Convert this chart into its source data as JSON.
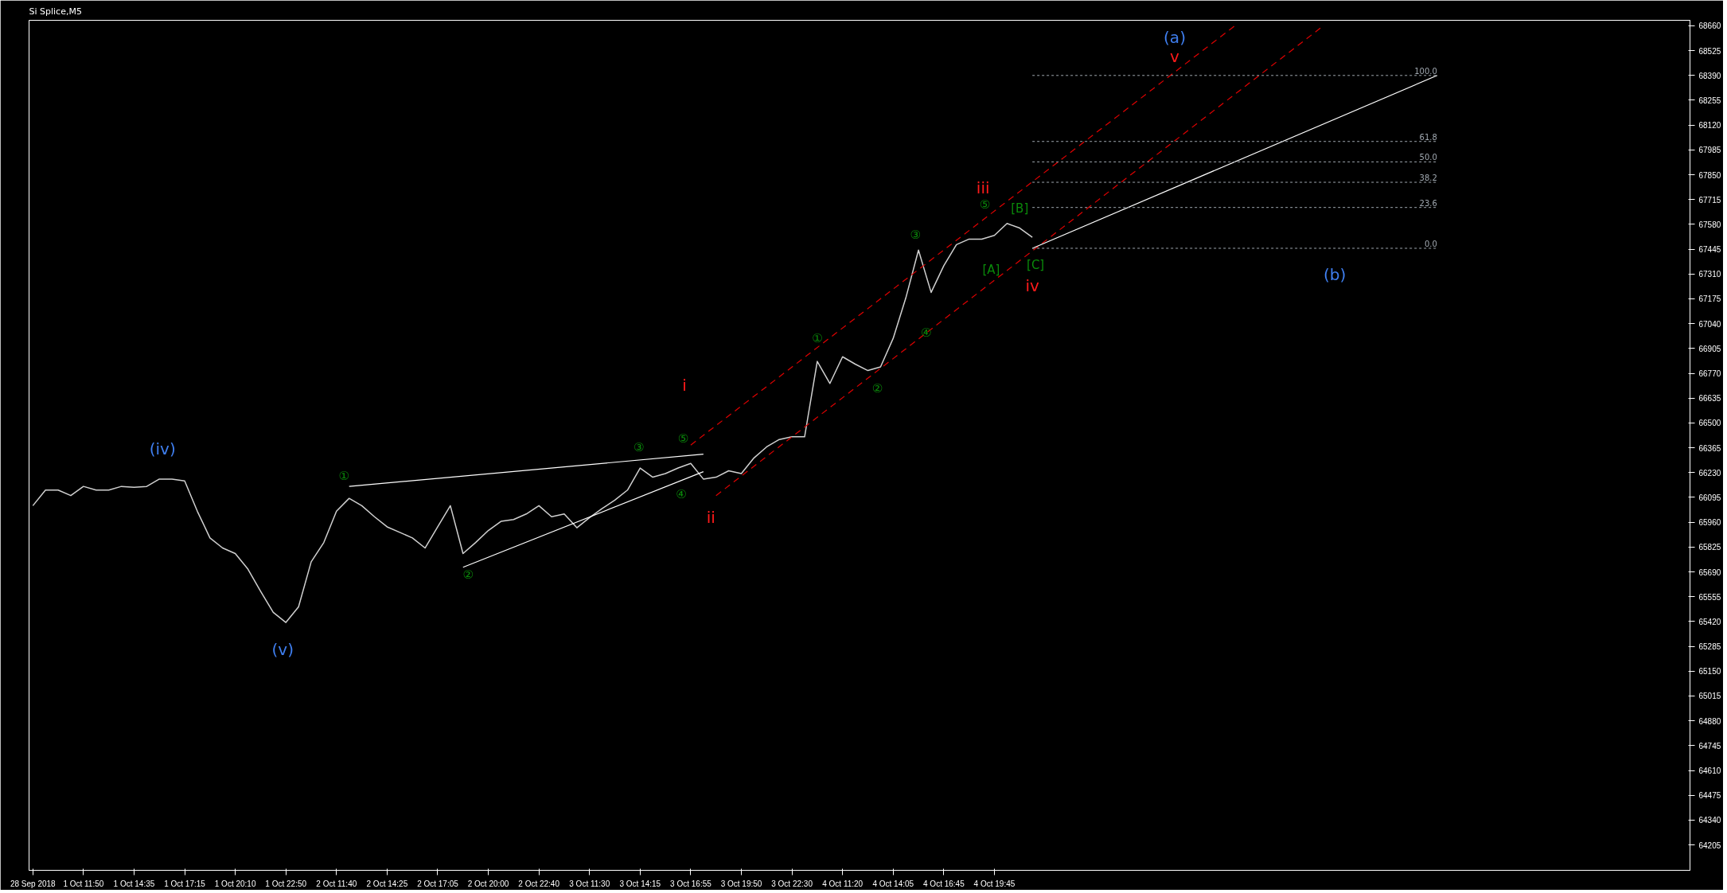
{
  "chart_data": {
    "type": "line",
    "title": "Si Splice,M5",
    "categories": [
      "28 Sep 2018",
      null,
      null,
      null,
      "1 Oct 11:50",
      null,
      null,
      null,
      "1 Oct 14:35",
      null,
      null,
      null,
      "1 Oct 17:15",
      null,
      null,
      null,
      "1 Oct 20:10",
      null,
      null,
      null,
      "1 Oct 22:50",
      null,
      null,
      null,
      "2 Oct 11:40",
      null,
      null,
      null,
      "2 Oct 14:25",
      null,
      null,
      null,
      "2 Oct 17:05",
      null,
      null,
      null,
      "2 Oct 20:00",
      null,
      null,
      null,
      "2 Oct 22:40",
      null,
      null,
      null,
      "3 Oct 11:30",
      null,
      null,
      null,
      "3 Oct 14:15",
      null,
      null,
      null,
      "3 Oct 16:55",
      null,
      null,
      null,
      "3 Oct 19:50",
      null,
      null,
      null,
      "3 Oct 22:30",
      null,
      null,
      null,
      "4 Oct 11:20",
      null,
      null,
      null,
      "4 Oct 14:05",
      null,
      null,
      null,
      "4 Oct 16:45",
      null,
      null,
      null,
      "4 Oct 19:45",
      null,
      null,
      null,
      null,
      null,
      null,
      null,
      null,
      null,
      null,
      null,
      null,
      null,
      null,
      null,
      null,
      null,
      null,
      null,
      null,
      null,
      null,
      null,
      null,
      null,
      null,
      null,
      null,
      null,
      null,
      null,
      null,
      null,
      null,
      null
    ],
    "ylim": [
      64067,
      68690
    ],
    "yticks": [
      64205,
      64340,
      64475,
      64610,
      64745,
      64880,
      65015,
      65150,
      65285,
      65420,
      65555,
      65690,
      65825,
      65960,
      66095,
      66230,
      66365,
      66500,
      66635,
      66770,
      66905,
      67040,
      67175,
      67310,
      67445,
      67580,
      67715,
      67850,
      67985,
      68120,
      68255,
      68390,
      68525,
      68660
    ],
    "grid": false,
    "line_style": "solid",
    "series": [
      {
        "color": "#d0d0d0",
        "values": [
          66050,
          66135,
          66135,
          66105,
          66155,
          66135,
          66135,
          66155,
          66150,
          66155,
          66195,
          66195,
          66185,
          66020,
          65875,
          65820,
          65790,
          65705,
          65585,
          65470,
          65415,
          65500,
          65745,
          65850,
          66020,
          66090,
          66050,
          65990,
          65935,
          65905,
          65875,
          65820,
          65935,
          66050,
          65790,
          65850,
          65915,
          65965,
          65975,
          66005,
          66050,
          65990,
          66005,
          65930,
          65985,
          66035,
          66080,
          66135,
          66255,
          66205,
          66225,
          66255,
          66280,
          66195,
          66205,
          66240,
          66225,
          66310,
          66370,
          66410,
          66425,
          66425,
          66835,
          66715,
          66860,
          66820,
          66785,
          66805,
          66960,
          67180,
          67440,
          67210,
          67355,
          67470,
          67500,
          67500,
          67520,
          67585,
          67560,
          67510,
          null,
          null,
          null,
          null,
          null,
          null,
          null,
          null,
          null,
          null,
          null,
          null,
          null,
          null,
          null,
          null,
          null,
          null,
          null,
          null,
          null,
          null,
          null,
          null,
          null,
          null,
          null,
          null,
          null,
          null,
          null,
          null
        ]
      },
      {
        "color": "#ffffff",
        "values": [
          null,
          null,
          null,
          null,
          null,
          null,
          null,
          null,
          null,
          null,
          null,
          null,
          null,
          null,
          null,
          null,
          null,
          null,
          null,
          null,
          null,
          null,
          null,
          null,
          null,
          66155,
          null,
          null,
          null,
          null,
          null,
          null,
          null,
          null,
          null,
          null,
          null,
          null,
          null,
          null,
          null,
          null,
          null,
          null,
          null,
          null,
          null,
          null,
          null,
          null,
          null,
          null,
          null,
          66330,
          null,
          null,
          null,
          null,
          null,
          null,
          null,
          null,
          null,
          null,
          null,
          null,
          null,
          null,
          null,
          null,
          null,
          null,
          null,
          null,
          null,
          null,
          null,
          null,
          null,
          null,
          null,
          null,
          null,
          null,
          null,
          null,
          null,
          null,
          null,
          null,
          null,
          null,
          null,
          null,
          null,
          null,
          null,
          null,
          null,
          null,
          null,
          null,
          null,
          null,
          null,
          null,
          null,
          null,
          null,
          null,
          null,
          null
        ]
      },
      {
        "color": "#ffffff",
        "values": [
          null,
          null,
          null,
          null,
          null,
          null,
          null,
          null,
          null,
          null,
          null,
          null,
          null,
          null,
          null,
          null,
          null,
          null,
          null,
          null,
          null,
          null,
          null,
          null,
          null,
          null,
          null,
          null,
          null,
          null,
          null,
          null,
          null,
          null,
          65715,
          null,
          null,
          null,
          null,
          null,
          null,
          null,
          null,
          null,
          null,
          null,
          null,
          null,
          null,
          null,
          null,
          null,
          null,
          66235,
          null,
          null,
          null,
          null,
          null,
          null,
          null,
          null,
          null,
          null,
          null,
          null,
          null,
          null,
          null,
          null,
          null,
          null,
          null,
          null,
          null,
          null,
          null,
          null,
          null,
          null,
          null,
          null,
          null,
          null,
          null,
          null,
          null,
          null,
          null,
          null,
          null,
          null,
          null,
          null,
          null,
          null,
          null,
          null,
          null,
          null,
          null,
          null,
          null,
          null,
          null,
          null,
          null,
          null,
          null,
          null,
          null,
          null
        ]
      },
      {
        "color": "#e00000",
        "line_style": "dashed",
        "values": [
          null,
          null,
          null,
          null,
          null,
          null,
          null,
          null,
          null,
          null,
          null,
          null,
          null,
          null,
          null,
          null,
          null,
          null,
          null,
          null,
          null,
          null,
          null,
          null,
          null,
          null,
          null,
          null,
          null,
          null,
          null,
          null,
          null,
          null,
          null,
          null,
          null,
          null,
          null,
          null,
          null,
          null,
          null,
          null,
          null,
          null,
          null,
          null,
          null,
          null,
          null,
          null,
          66380,
          null,
          null,
          null,
          null,
          null,
          null,
          null,
          null,
          null,
          null,
          null,
          null,
          null,
          null,
          null,
          null,
          null,
          null,
          null,
          null,
          null,
          null,
          null,
          null,
          null,
          null,
          null,
          null,
          null,
          null,
          null,
          null,
          null,
          null,
          null,
          null,
          null,
          null,
          null,
          null,
          null,
          null,
          68660,
          null,
          null,
          null,
          null,
          null,
          null,
          null,
          null,
          null,
          null,
          null,
          null,
          null,
          null,
          null,
          null
        ]
      },
      {
        "color": "#e00000",
        "line_style": "dashed",
        "values": [
          null,
          null,
          null,
          null,
          null,
          null,
          null,
          null,
          null,
          null,
          null,
          null,
          null,
          null,
          null,
          null,
          null,
          null,
          null,
          null,
          null,
          null,
          null,
          null,
          null,
          null,
          null,
          null,
          null,
          null,
          null,
          null,
          null,
          null,
          null,
          null,
          null,
          null,
          null,
          null,
          null,
          null,
          null,
          null,
          null,
          null,
          null,
          null,
          null,
          null,
          null,
          null,
          null,
          null,
          66105,
          null,
          null,
          null,
          null,
          null,
          null,
          null,
          null,
          null,
          null,
          null,
          null,
          null,
          null,
          null,
          null,
          null,
          null,
          null,
          null,
          null,
          null,
          null,
          null,
          null,
          null,
          null,
          null,
          null,
          null,
          null,
          null,
          null,
          null,
          null,
          null,
          null,
          null,
          null,
          null,
          null,
          null,
          null,
          null,
          null,
          null,
          null,
          68660,
          null,
          null,
          null,
          null,
          null,
          null,
          null,
          null,
          null
        ]
      },
      {
        "color": "#ffffff",
        "values": [
          null,
          null,
          null,
          null,
          null,
          null,
          null,
          null,
          null,
          null,
          null,
          null,
          null,
          null,
          null,
          null,
          null,
          null,
          null,
          null,
          null,
          null,
          null,
          null,
          null,
          null,
          null,
          null,
          null,
          null,
          null,
          null,
          null,
          null,
          null,
          null,
          null,
          null,
          null,
          null,
          null,
          null,
          null,
          null,
          null,
          null,
          null,
          null,
          null,
          null,
          null,
          null,
          null,
          null,
          null,
          null,
          null,
          null,
          null,
          null,
          null,
          null,
          null,
          null,
          null,
          null,
          null,
          null,
          null,
          null,
          null,
          null,
          null,
          null,
          null,
          null,
          null,
          null,
          null,
          67450,
          null,
          null,
          null,
          null,
          null,
          null,
          null,
          null,
          null,
          null,
          null,
          null,
          null,
          null,
          null,
          null,
          null,
          null,
          null,
          null,
          null,
          null,
          null,
          null,
          null,
          null,
          null,
          null,
          null,
          null,
          null,
          68390
        ]
      }
    ],
    "ref_lines": [
      {
        "axis": "y",
        "value": 67450,
        "color": "#a0a8b0",
        "line_style": "dotted"
      },
      {
        "axis": "y",
        "value": 67672,
        "color": "#a0a8b0",
        "line_style": "dotted"
      },
      {
        "axis": "y",
        "value": 67809,
        "color": "#a0a8b0",
        "line_style": "dotted"
      },
      {
        "axis": "y",
        "value": 67920,
        "color": "#a0a8b0",
        "line_style": "dotted"
      },
      {
        "axis": "y",
        "value": 68031,
        "color": "#a0a8b0",
        "line_style": "dotted"
      },
      {
        "axis": "y",
        "value": 68390,
        "color": "#a0a8b0",
        "line_style": "dotted"
      }
    ],
    "annotations": [
      "(iv)",
      "(v)",
      "(a)",
      "(b)",
      "i",
      "ii",
      "iii",
      "iv",
      "v",
      "①",
      "②",
      "③",
      "④",
      "⑤",
      "①",
      "②",
      "③",
      "④",
      "⑤",
      "[A]",
      "[B]",
      "[C]",
      "0.0",
      "23.6",
      "38.2",
      "50.0",
      "61.8",
      "100.0"
    ]
  }
}
